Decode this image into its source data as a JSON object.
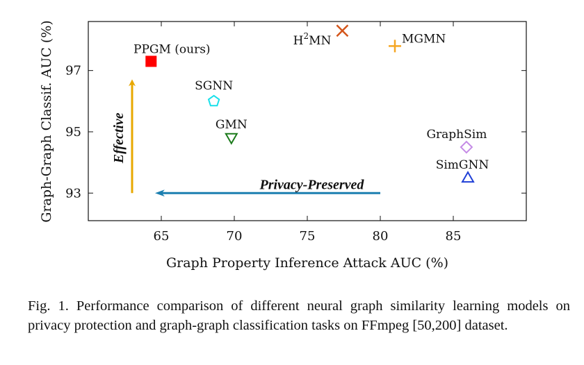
{
  "chart_data": {
    "type": "scatter",
    "xlabel": "Graph Property Inference Attack AUC (%)",
    "ylabel": "Graph-Graph Classif. AUC (%)",
    "xlim": [
      60,
      90
    ],
    "ylim": [
      92.1,
      98.6
    ],
    "xticks": [
      65,
      70,
      75,
      80,
      85
    ],
    "yticks": [
      93,
      95,
      97
    ],
    "grid": false,
    "points": [
      {
        "label": "PPGM (ours)",
        "x": 64.3,
        "y": 97.3,
        "marker": "filled-square",
        "color": "#ff0000"
      },
      {
        "label": "H²MN",
        "label_base": "H",
        "label_sup": "2",
        "label_rest": "MN",
        "x": 77.4,
        "y": 98.3,
        "marker": "x",
        "color": "#d4551a"
      },
      {
        "label": "MGMN",
        "x": 81.0,
        "y": 97.8,
        "marker": "plus",
        "color": "#f5a623"
      },
      {
        "label": "SGNN",
        "x": 68.6,
        "y": 96.0,
        "marker": "pentagon",
        "color": "#18e0ea"
      },
      {
        "label": "GMN",
        "x": 69.8,
        "y": 94.8,
        "marker": "triangle-down",
        "color": "#1b7a1b"
      },
      {
        "label": "GraphSim",
        "x": 85.9,
        "y": 94.5,
        "marker": "diamond",
        "color": "#c58be6"
      },
      {
        "label": "SimGNN",
        "x": 86.0,
        "y": 93.5,
        "marker": "triangle-up",
        "color": "#1f3fd6"
      }
    ],
    "annotations": [
      {
        "text": "Effective",
        "color": "#e8a800",
        "from": [
          63.0,
          93.0
        ],
        "to": [
          63.0,
          96.6
        ],
        "orientation": "vertical"
      },
      {
        "text": "Privacy-Preserved",
        "color": "#1b7fb0",
        "from": [
          80.0,
          93.0
        ],
        "to": [
          64.9,
          93.0
        ],
        "orientation": "horizontal"
      }
    ]
  },
  "caption": {
    "text": "Fig. 1.  Performance comparison of different neural graph similarity learning models on privacy protection and graph-graph classification tasks on FFmpeg [50,200] dataset."
  }
}
